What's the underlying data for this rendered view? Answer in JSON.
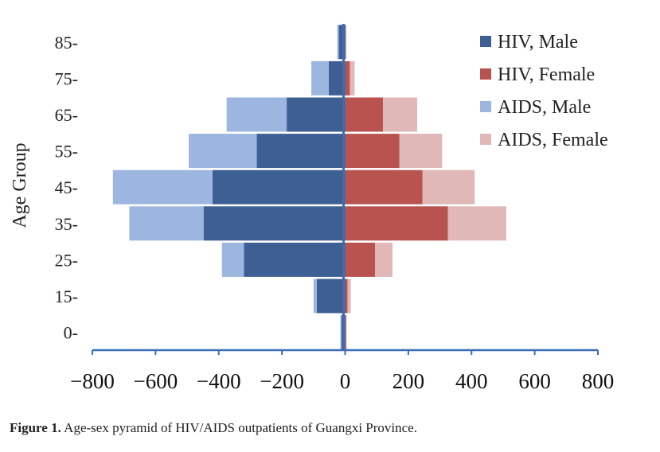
{
  "chart_data": {
    "type": "bar",
    "orientation": "horizontal",
    "layout": "population-pyramid",
    "stacked": true,
    "ylabel": "Age Group",
    "xlabel": "",
    "categories": [
      "0-",
      "15-",
      "25-",
      "35-",
      "45-",
      "55-",
      "65-",
      "75-",
      "85-"
    ],
    "xlim": [
      -800,
      800
    ],
    "xticks": [
      "−800",
      "−600",
      "−400",
      "−200",
      "0",
      "200",
      "400",
      "600",
      "800"
    ],
    "xtick_values": [
      -800,
      -600,
      -400,
      -200,
      0,
      200,
      400,
      600,
      800
    ],
    "series": [
      {
        "name": "HIV, Male",
        "side": "left",
        "color": "#3D5F94",
        "values": [
          -12,
          -90,
          -320,
          -448,
          -420,
          -280,
          -185,
          -52,
          -20
        ]
      },
      {
        "name": "HIV, Female",
        "side": "right",
        "color": "#B8534F",
        "values": [
          3,
          8,
          95,
          325,
          245,
          172,
          120,
          15,
          2
        ]
      },
      {
        "name": "AIDS, Male",
        "side": "left",
        "color": "#9DB6E0",
        "values": [
          -3,
          -10,
          -70,
          -235,
          -315,
          -215,
          -190,
          -55,
          -5
        ]
      },
      {
        "name": "AIDS, Female",
        "side": "right",
        "color": "#E0B8B8",
        "values": [
          2,
          10,
          55,
          185,
          165,
          135,
          108,
          15,
          2
        ]
      }
    ],
    "legend_position": "top-right",
    "grid": false
  },
  "caption": {
    "label": "Figure 1.",
    "text": " Age-sex pyramid of HIV/AIDS outpatients of Guangxi Province."
  }
}
